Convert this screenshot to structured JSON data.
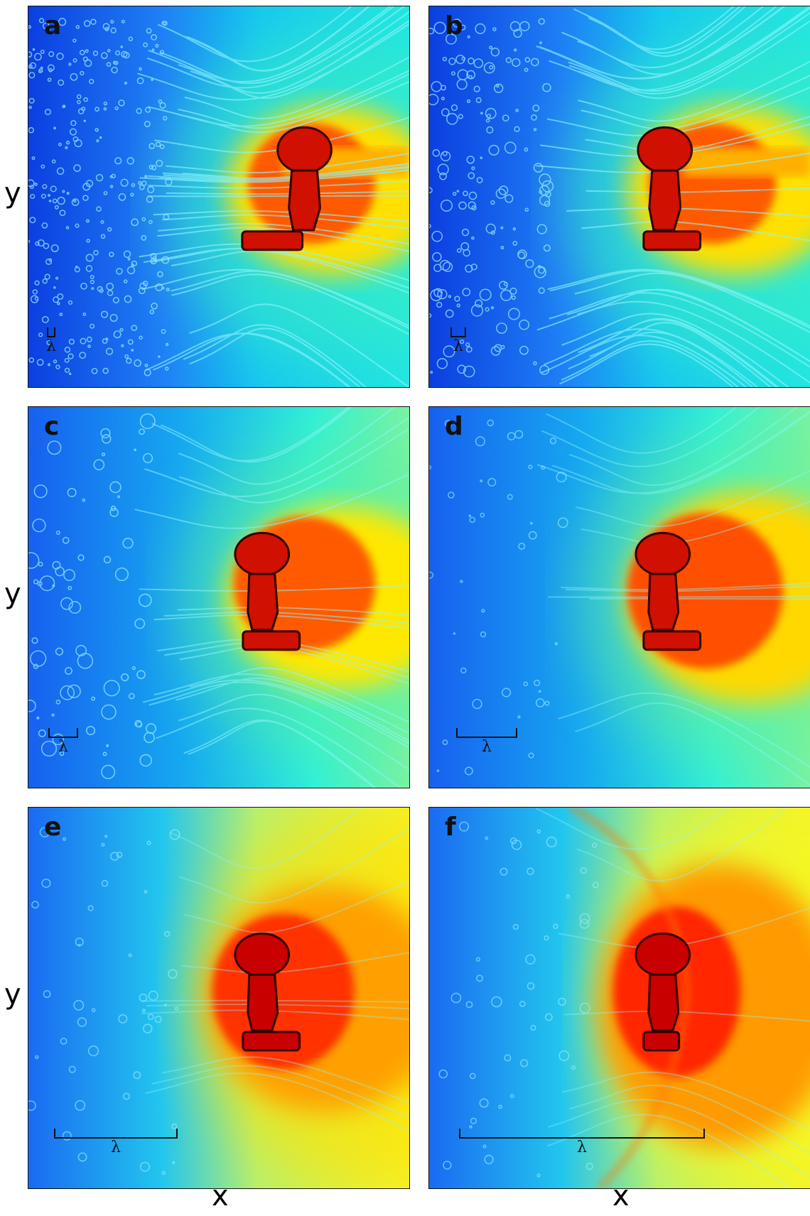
{
  "axes": {
    "x_label": "x",
    "y_label": "y"
  },
  "scale_symbol": "λ",
  "panels": [
    {
      "id": "a",
      "label": "a"
    },
    {
      "id": "b",
      "label": "b"
    },
    {
      "id": "c",
      "label": "c"
    },
    {
      "id": "d",
      "label": "d"
    },
    {
      "id": "e",
      "label": "e"
    },
    {
      "id": "f",
      "label": "f"
    }
  ],
  "colors": {
    "colormap": [
      "#0a2fd8",
      "#1a72f5",
      "#12b8f0",
      "#1ef0e8",
      "#9ef56e",
      "#f2f51a",
      "#ffb400",
      "#ff4a00",
      "#c80000",
      "#5a0000"
    ]
  }
}
